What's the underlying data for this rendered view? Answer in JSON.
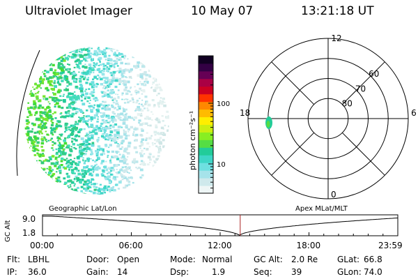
{
  "header": {
    "title": "Ultraviolet Imager",
    "date": "10 May 07",
    "time": "13:21:18 UT"
  },
  "colorbar": {
    "unit_label": "photon cm⁻²s⁻¹",
    "ticks": [
      {
        "label": "100",
        "value": 100
      },
      {
        "label": "10",
        "value": 10
      }
    ],
    "colors": [
      "#eef6f6",
      "#cfe9ec",
      "#a6e3ea",
      "#6ee0e0",
      "#3ed6c6",
      "#22cc99",
      "#55dd44",
      "#88ee22",
      "#ccee11",
      "#ffee00",
      "#ffbb00",
      "#ff8800",
      "#ff3300",
      "#cc0022",
      "#aa0044",
      "#660055",
      "#330044",
      "#110022"
    ]
  },
  "polar": {
    "mlt_labels": {
      "top": "12",
      "right": "6",
      "bottom": "0",
      "left": "18"
    },
    "lat_labels": [
      {
        "label": "60",
        "lat": 60
      },
      {
        "label": "70",
        "lat": 70
      },
      {
        "label": "80",
        "lat": 80
      }
    ],
    "circle_lats": [
      50,
      60,
      70,
      80
    ]
  },
  "altitude_strip": {
    "y_title": "GC Alt",
    "y_top": "9.0",
    "y_bottom": "1.8",
    "left_caption": "Geographic Lat/Lon",
    "right_caption": "Apex MLat/MLT",
    "x_ticks": [
      "00:00",
      "06:00",
      "12:00",
      "18:00",
      "23:59"
    ],
    "current_time_hours": 13.355,
    "orbit_min_hours": 13.3
  },
  "info": {
    "row1": [
      {
        "key": "Flt:",
        "value": "LBHL"
      },
      {
        "key": "Door:",
        "value": "Open"
      },
      {
        "key": "Mode:",
        "value": "Normal"
      },
      {
        "key": "GC Alt:",
        "value": "2.0 Re"
      },
      {
        "key": "GLat:",
        "value": "66.8"
      }
    ],
    "row2": [
      {
        "key": "IP:",
        "value": "36.0"
      },
      {
        "key": "Gain:",
        "value": "14"
      },
      {
        "key": "Dsp:",
        "value": "1.9"
      },
      {
        "key": "Seq:",
        "value": "39"
      },
      {
        "key": "GLon:",
        "value": "74.0"
      }
    ]
  }
}
